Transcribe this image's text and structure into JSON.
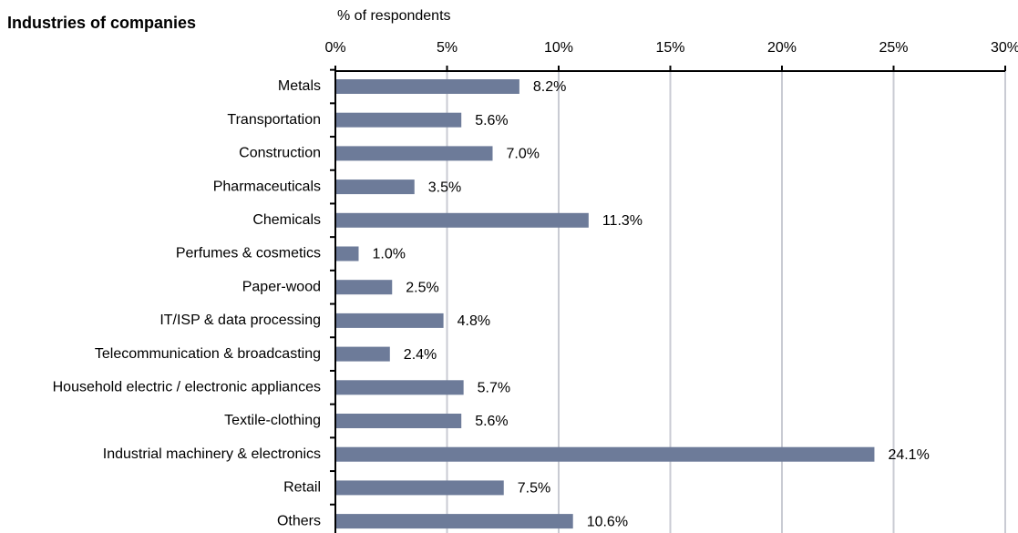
{
  "chart_data": {
    "type": "barh",
    "title": "Industries of companies",
    "xlabel": "% of respondents",
    "categories": [
      "Metals",
      "Transportation",
      "Construction",
      "Pharmaceuticals",
      "Chemicals",
      "Perfumes & cosmetics",
      "Paper-wood",
      "IT/ISP & data processing",
      "Telecommunication & broadcasting",
      "Household electric / electronic appliances",
      "Textile-clothing",
      "Industrial machinery & electronics",
      "Retail",
      "Others"
    ],
    "values": [
      8.2,
      5.6,
      7.0,
      3.5,
      11.3,
      1.0,
      2.5,
      4.8,
      2.4,
      5.7,
      5.6,
      24.1,
      7.5,
      10.6
    ],
    "value_labels": [
      "8.2%",
      "5.6%",
      "7.0%",
      "3.5%",
      "11.3%",
      "1.0%",
      "2.5%",
      "4.8%",
      "2.4%",
      "5.7%",
      "5.6%",
      "24.1%",
      "7.5%",
      "10.6%"
    ],
    "color": "#6d7b99",
    "xlim": [
      0,
      30
    ],
    "xticks": [
      {
        "value": 0,
        "label": "0%"
      },
      {
        "value": 5,
        "label": "5%"
      },
      {
        "value": 10,
        "label": "10%"
      },
      {
        "value": 15,
        "label": "15%"
      },
      {
        "value": 20,
        "label": "20%"
      },
      {
        "value": 25,
        "label": "25%"
      },
      {
        "value": 30,
        "label": "30%"
      }
    ],
    "grid": true
  }
}
